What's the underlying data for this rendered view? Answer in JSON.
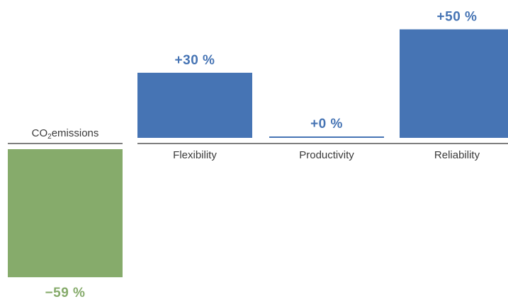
{
  "chart_data": {
    "type": "bar",
    "categories": [
      "CO₂emissions",
      "Flexibility",
      "Productivity",
      "Reliability"
    ],
    "values": [
      -59,
      30,
      0,
      50
    ],
    "value_labels": [
      "−59 %",
      "+30 %",
      "+0 %",
      "+50 %"
    ],
    "colors": {
      "negative": "#86AB6B",
      "positive": "#4674B4"
    },
    "title": "",
    "xlabel": "",
    "ylabel": "",
    "grid": false,
    "legend": "none"
  }
}
